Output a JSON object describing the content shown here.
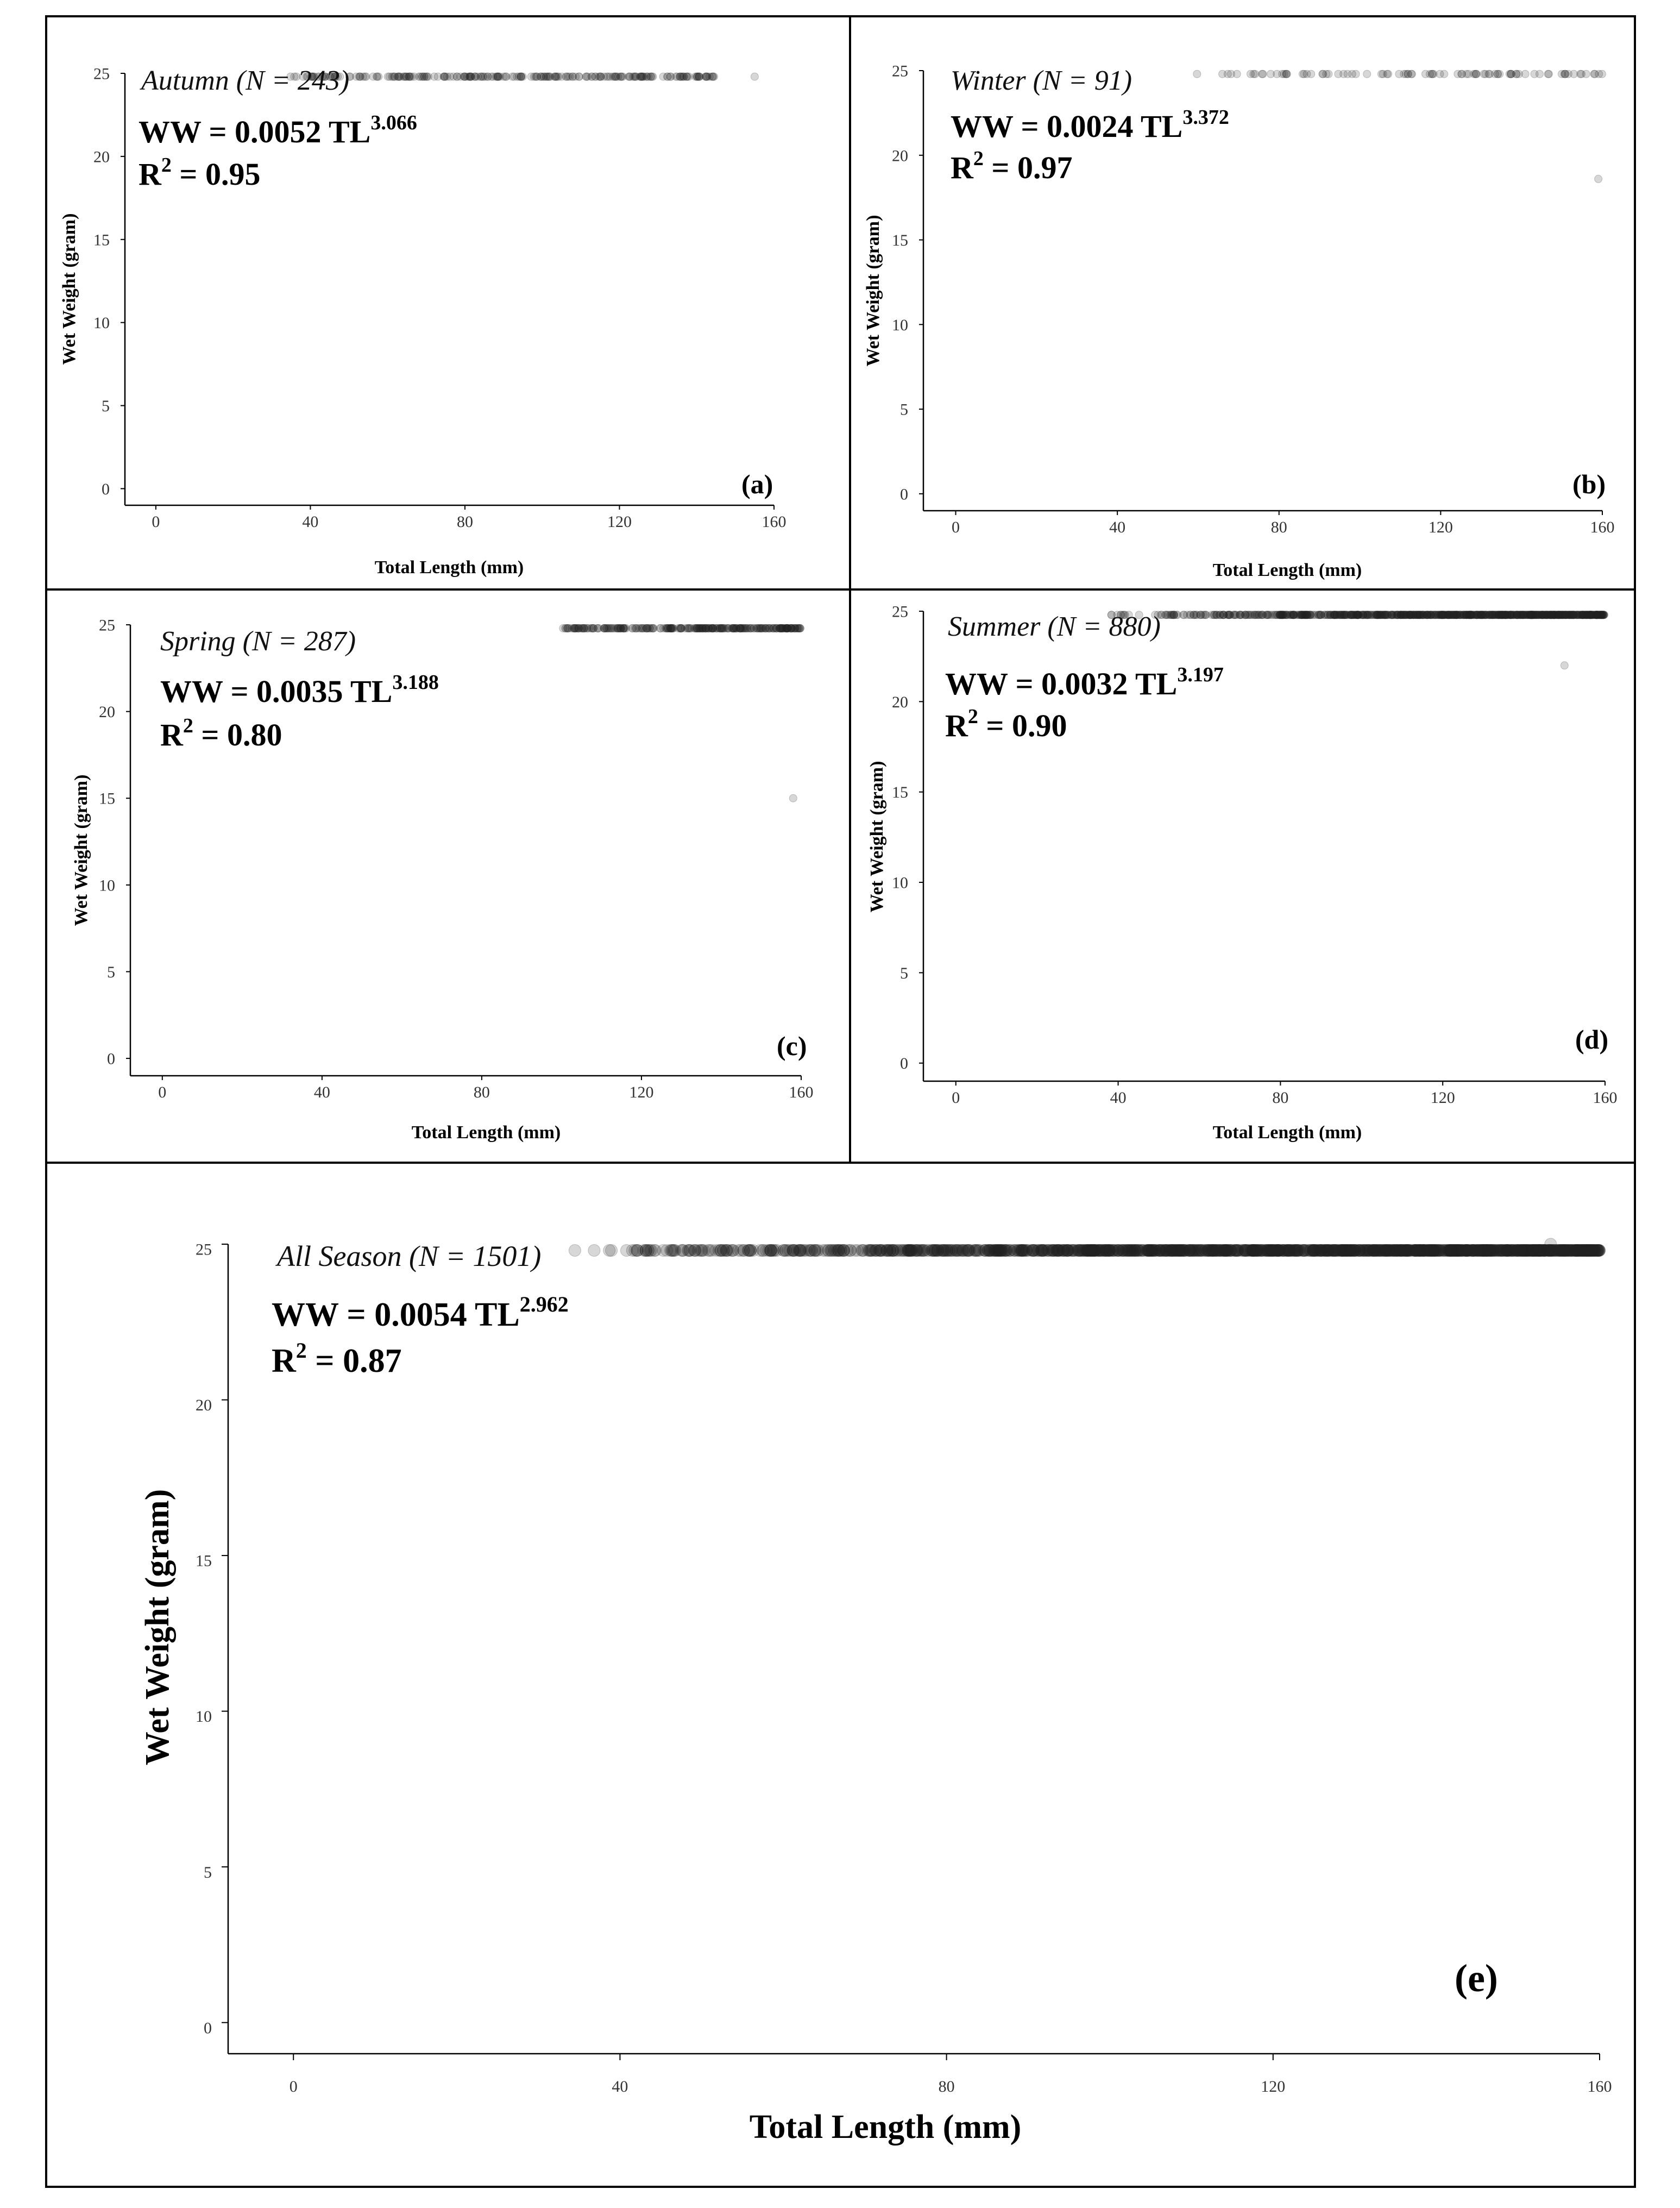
{
  "figure": {
    "panel_border_color": "#000000",
    "point_color": "#222222",
    "fit_color": "#d01c1c",
    "band_color": "#9a9a9a"
  },
  "chart_data": [
    {
      "id": "a",
      "type": "scatter",
      "panel_label": "(a)",
      "title": "Autumn (N = 243)",
      "n": 243,
      "equation": {
        "prefix": "WW = 0.0052 TL",
        "exponent": "3.066",
        "a": 0.0052,
        "b": 3.066
      },
      "r2": {
        "label": "R",
        "sup": "2",
        "value": " = 0.95"
      },
      "xlabel": "Total Length (mm)",
      "ylabel": "Wet Weight (gram)",
      "xlim": [
        -8,
        160
      ],
      "ylim": [
        -1,
        25
      ],
      "xticks": [
        0,
        40,
        80,
        120,
        160
      ],
      "yticks": [
        0,
        5,
        10,
        15,
        20,
        25
      ],
      "tl_range": [
        33,
        145
      ],
      "spread": 0.16,
      "highlight_points": [
        {
          "x": 155,
          "y": 24.8
        }
      ]
    },
    {
      "id": "b",
      "type": "scatter",
      "panel_label": "(b)",
      "title": "Winter (N = 91)",
      "n": 91,
      "equation": {
        "prefix": "WW = 0.0024 TL",
        "exponent": "3.372",
        "a": 0.0024,
        "b": 3.372
      },
      "r2": {
        "label": "R",
        "sup": "2",
        "value": " = 0.97"
      },
      "xlabel": "Total Length (mm)",
      "ylabel": "Wet Weight (gram)",
      "xlim": [
        -8,
        160
      ],
      "ylim": [
        -1,
        25
      ],
      "xticks": [
        0,
        40,
        80,
        120,
        160
      ],
      "yticks": [
        0,
        5,
        10,
        15,
        20,
        25
      ],
      "tl_range": [
        59,
        160
      ],
      "spread": 0.09,
      "highlight_points": [
        {
          "x": 159,
          "y": 18.6
        }
      ]
    },
    {
      "id": "c",
      "type": "scatter",
      "panel_label": "(c)",
      "title": "Spring (N = 287)",
      "n": 287,
      "equation": {
        "prefix": "WW = 0.0035 TL",
        "exponent": "3.188",
        "a": 0.0035,
        "b": 3.188
      },
      "r2": {
        "label": "R",
        "sup": "2",
        "value": " = 0.80"
      },
      "xlabel": "Total Length (mm)",
      "ylabel": "Wet Weight (gram)",
      "xlim": [
        -8,
        160
      ],
      "ylim": [
        -1,
        25
      ],
      "xticks": [
        0,
        40,
        80,
        120,
        160
      ],
      "yticks": [
        0,
        5,
        10,
        15,
        20,
        25
      ],
      "tl_range": [
        100,
        160
      ],
      "spread": 0.15,
      "highlight_points": [
        {
          "x": 158,
          "y": 15.0
        }
      ]
    },
    {
      "id": "d",
      "type": "scatter",
      "panel_label": "(d)",
      "title": "Summer (N = 880)",
      "n": 880,
      "equation": {
        "prefix": "WW = 0.0032 TL",
        "exponent": "3.197",
        "a": 0.0032,
        "b": 3.197
      },
      "r2": {
        "label": "R",
        "sup": "2",
        "value": " = 0.90"
      },
      "xlabel": "Total Length (mm)",
      "ylabel": "Wet Weight (gram)",
      "xlim": [
        -8,
        160
      ],
      "ylim": [
        -1,
        25
      ],
      "xticks": [
        0,
        40,
        80,
        120,
        160
      ],
      "yticks": [
        0,
        5,
        10,
        15,
        20,
        25
      ],
      "tl_range": [
        38,
        160
      ],
      "spread": 0.17,
      "highlight_points": [
        {
          "x": 150,
          "y": 22.0
        }
      ]
    },
    {
      "id": "e",
      "type": "scatter",
      "panel_label": "(e)",
      "title": "All Season (N = 1501)",
      "n": 1501,
      "equation": {
        "prefix": "WW = 0.0054 TL",
        "exponent": "2.962",
        "a": 0.0054,
        "b": 2.962
      },
      "r2": {
        "label": "R",
        "sup": "2",
        "value": " = 0.87"
      },
      "xlabel": "Total Length (mm)",
      "ylabel": "Wet Weight (gram)",
      "xlim": [
        -8,
        160
      ],
      "ylim": [
        -1,
        25
      ],
      "xticks": [
        0,
        40,
        80,
        120,
        160
      ],
      "yticks": [
        0,
        5,
        10,
        15,
        20,
        25
      ],
      "tl_range": [
        34,
        160
      ],
      "spread": 0.2,
      "highlight_points": [
        {
          "x": 154,
          "y": 25.0
        },
        {
          "x": 159,
          "y": 24.8
        }
      ]
    }
  ]
}
